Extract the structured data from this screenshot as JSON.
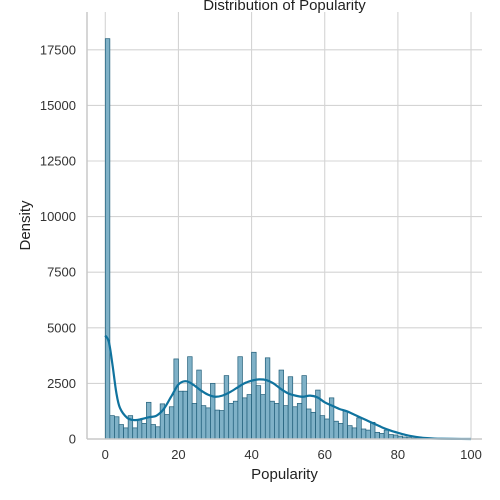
{
  "chart_data": {
    "type": "bar",
    "title": "Distribution of Popularity",
    "xlabel": "Popularity",
    "ylabel": "Density",
    "xlim": [
      -5,
      103
    ],
    "ylim": [
      0,
      19200
    ],
    "xticks": [
      "0",
      "20",
      "40",
      "60",
      "80",
      "100"
    ],
    "xtick_values": [
      0,
      20,
      40,
      60,
      80,
      100
    ],
    "yticks": [
      "0",
      "2500",
      "5000",
      "7500",
      "10000",
      "12500",
      "15000",
      "17500"
    ],
    "ytick_values": [
      0,
      2500,
      5000,
      7500,
      10000,
      12500,
      15000,
      17500
    ],
    "grid": true,
    "bar_color": "#7fb1c7",
    "bar_edge_color": "#1f5d78",
    "kde_color": "#10739e",
    "bin_width": 1.25,
    "bin_start": 0,
    "values": [
      18000,
      1050,
      1000,
      650,
      500,
      1050,
      500,
      850,
      700,
      1650,
      650,
      550,
      1580,
      1100,
      1450,
      3600,
      2150,
      2150,
      3700,
      1600,
      3100,
      1500,
      1400,
      2500,
      1300,
      1280,
      2850,
      1600,
      1700,
      3700,
      1850,
      2000,
      3900,
      2400,
      2000,
      3650,
      1700,
      1600,
      3100,
      1500,
      2800,
      1450,
      1600,
      2850,
      1350,
      1200,
      2200,
      1050,
      900,
      1850,
      800,
      700,
      1250,
      600,
      500,
      950,
      450,
      400,
      750,
      300,
      250,
      400,
      200,
      180,
      130,
      90,
      60,
      40,
      25,
      15,
      8,
      5,
      3,
      2,
      1,
      1,
      1,
      1,
      1,
      1
    ],
    "kde": {
      "x": [
        0,
        1,
        2,
        3,
        4,
        6,
        8,
        10,
        12,
        14,
        16,
        18,
        20,
        22,
        24,
        26,
        28,
        30,
        32,
        34,
        36,
        38,
        40,
        42,
        44,
        46,
        48,
        50,
        52,
        54,
        56,
        58,
        60,
        62,
        64,
        66,
        68,
        70,
        72,
        74,
        76,
        78,
        80,
        82,
        84,
        86,
        88,
        90,
        92,
        95,
        100
      ],
      "y": [
        4650,
        4350,
        3300,
        2100,
        1400,
        950,
        850,
        900,
        980,
        1050,
        1350,
        1900,
        2450,
        2600,
        2450,
        2200,
        2000,
        1900,
        1950,
        2100,
        2300,
        2500,
        2620,
        2680,
        2650,
        2500,
        2250,
        2050,
        1950,
        1900,
        1950,
        1870,
        1650,
        1500,
        1350,
        1250,
        1100,
        950,
        800,
        650,
        500,
        380,
        280,
        190,
        120,
        70,
        40,
        20,
        10,
        4,
        1
      ]
    }
  }
}
